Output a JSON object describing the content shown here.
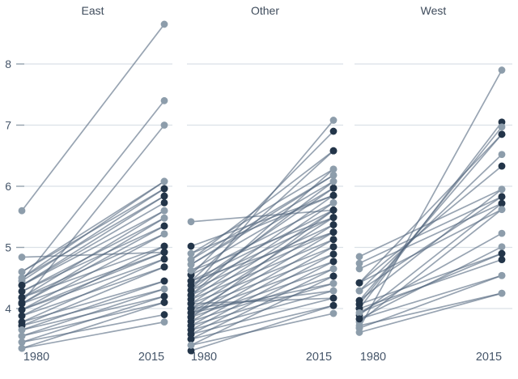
{
  "chart_data": {
    "type": "slope",
    "title": "",
    "x_categories": [
      "1980",
      "2015"
    ],
    "y_ticks": [
      4,
      5,
      6,
      7,
      8
    ],
    "y_range": [
      3.2,
      8.8
    ],
    "grid": true,
    "legend": "none",
    "facets": [
      "East",
      "Other",
      "West"
    ],
    "colors": {
      "dark_dot": "#233549",
      "light_dot": "#8d9dab",
      "line": "#53687e",
      "line_opacity": 0.6,
      "grid": "#dbe1e7",
      "tick": "#93a1ad",
      "axis_text": "#46566a",
      "title_text": "#3f4c5c",
      "background": "#ffffff"
    },
    "panels": [
      {
        "label": "East",
        "lines": [
          {
            "s": 5.6,
            "e": 8.65,
            "sc": "l",
            "ec": "l"
          },
          {
            "s": 4.45,
            "e": 7.4,
            "sc": "l",
            "ec": "l"
          },
          {
            "s": 4.1,
            "e": 7.0,
            "sc": "d",
            "ec": "l"
          },
          {
            "s": 4.84,
            "e": 4.92,
            "sc": "l",
            "ec": "d"
          },
          {
            "s": 4.6,
            "e": 6.08,
            "sc": "l",
            "ec": "l"
          },
          {
            "s": 4.6,
            "e": 5.96,
            "sc": "l",
            "ec": "d"
          },
          {
            "s": 4.5,
            "e": 6.08,
            "sc": "l",
            "ec": "l"
          },
          {
            "s": 4.5,
            "e": 5.84,
            "sc": "l",
            "ec": "d"
          },
          {
            "s": 4.45,
            "e": 5.96,
            "sc": "l",
            "ec": "d"
          },
          {
            "s": 4.38,
            "e": 5.84,
            "sc": "d",
            "ec": "d"
          },
          {
            "s": 4.38,
            "e": 5.73,
            "sc": "d",
            "ec": "d"
          },
          {
            "s": 4.38,
            "e": 5.6,
            "sc": "d",
            "ec": "l"
          },
          {
            "s": 4.28,
            "e": 5.48,
            "sc": "d",
            "ec": "l"
          },
          {
            "s": 4.28,
            "e": 5.35,
            "sc": "d",
            "ec": "d"
          },
          {
            "s": 4.18,
            "e": 5.22,
            "sc": "d",
            "ec": "l"
          },
          {
            "s": 4.18,
            "e": 5.02,
            "sc": "d",
            "ec": "d"
          },
          {
            "s": 4.18,
            "e": 5.6,
            "sc": "d",
            "ec": "l"
          },
          {
            "s": 4.08,
            "e": 4.92,
            "sc": "d",
            "ec": "d"
          },
          {
            "s": 4.08,
            "e": 5.35,
            "sc": "d",
            "ec": "d"
          },
          {
            "s": 4.08,
            "e": 5.48,
            "sc": "d",
            "ec": "l"
          },
          {
            "s": 3.98,
            "e": 4.81,
            "sc": "d",
            "ec": "d"
          },
          {
            "s": 3.98,
            "e": 5.22,
            "sc": "d",
            "ec": "l"
          },
          {
            "s": 3.98,
            "e": 4.92,
            "sc": "d",
            "ec": "d"
          },
          {
            "s": 3.88,
            "e": 4.68,
            "sc": "d",
            "ec": "d"
          },
          {
            "s": 3.88,
            "e": 5.02,
            "sc": "d",
            "ec": "d"
          },
          {
            "s": 3.78,
            "e": 4.45,
            "sc": "d",
            "ec": "d"
          },
          {
            "s": 3.78,
            "e": 4.81,
            "sc": "d",
            "ec": "d"
          },
          {
            "s": 3.72,
            "e": 4.32,
            "sc": "d",
            "ec": "l"
          },
          {
            "s": 3.72,
            "e": 4.68,
            "sc": "d",
            "ec": "d"
          },
          {
            "s": 3.65,
            "e": 4.2,
            "sc": "l",
            "ec": "d"
          },
          {
            "s": 3.65,
            "e": 4.45,
            "sc": "l",
            "ec": "d"
          },
          {
            "s": 3.55,
            "e": 4.1,
            "sc": "l",
            "ec": "d"
          },
          {
            "s": 3.55,
            "e": 4.32,
            "sc": "l",
            "ec": "l"
          },
          {
            "s": 3.45,
            "e": 3.9,
            "sc": "l",
            "ec": "d"
          },
          {
            "s": 3.45,
            "e": 4.2,
            "sc": "l",
            "ec": "d"
          },
          {
            "s": 3.35,
            "e": 3.78,
            "sc": "l",
            "ec": "l"
          },
          {
            "s": 3.35,
            "e": 4.1,
            "sc": "l",
            "ec": "d"
          }
        ]
      },
      {
        "label": "Other",
        "lines": [
          {
            "s": 5.42,
            "e": 5.61,
            "sc": "l",
            "ec": "d"
          },
          {
            "s": 4.3,
            "e": 7.08,
            "sc": "d",
            "ec": "l"
          },
          {
            "s": 4.55,
            "e": 6.9,
            "sc": "d",
            "ec": "d"
          },
          {
            "s": 4.45,
            "e": 6.58,
            "sc": "d",
            "ec": "d"
          },
          {
            "s": 4.9,
            "e": 6.28,
            "sc": "l",
            "ec": "l"
          },
          {
            "s": 4.8,
            "e": 6.18,
            "sc": "l",
            "ec": "l"
          },
          {
            "s": 4.72,
            "e": 6.08,
            "sc": "l",
            "ec": "l"
          },
          {
            "s": 4.62,
            "e": 5.97,
            "sc": "l",
            "ec": "d"
          },
          {
            "s": 5.02,
            "e": 5.85,
            "sc": "d",
            "ec": "d"
          },
          {
            "s": 4.55,
            "e": 5.73,
            "sc": "d",
            "ec": "l"
          },
          {
            "s": 4.45,
            "e": 5.61,
            "sc": "d",
            "ec": "d"
          },
          {
            "s": 4.38,
            "e": 5.49,
            "sc": "d",
            "ec": "d"
          },
          {
            "s": 4.3,
            "e": 5.37,
            "sc": "d",
            "ec": "d"
          },
          {
            "s": 4.22,
            "e": 5.25,
            "sc": "d",
            "ec": "d"
          },
          {
            "s": 4.15,
            "e": 5.13,
            "sc": "d",
            "ec": "d"
          },
          {
            "s": 4.08,
            "e": 5.01,
            "sc": "d",
            "ec": "d"
          },
          {
            "s": 4.0,
            "e": 4.89,
            "sc": "d",
            "ec": "d"
          },
          {
            "s": 3.93,
            "e": 4.77,
            "sc": "d",
            "ec": "d"
          },
          {
            "s": 3.86,
            "e": 4.65,
            "sc": "d",
            "ec": "l"
          },
          {
            "s": 3.79,
            "e": 4.53,
            "sc": "d",
            "ec": "d"
          },
          {
            "s": 3.72,
            "e": 4.41,
            "sc": "d",
            "ec": "l"
          },
          {
            "s": 3.65,
            "e": 4.29,
            "sc": "d",
            "ec": "l"
          },
          {
            "s": 3.58,
            "e": 4.17,
            "sc": "d",
            "ec": "d"
          },
          {
            "s": 3.5,
            "e": 4.05,
            "sc": "d",
            "ec": "d"
          },
          {
            "s": 3.4,
            "e": 3.92,
            "sc": "l",
            "ec": "l"
          },
          {
            "s": 3.31,
            "e": 4.05,
            "sc": "d",
            "ec": "d"
          },
          {
            "s": 4.62,
            "e": 5.49,
            "sc": "l",
            "ec": "d"
          },
          {
            "s": 4.38,
            "e": 5.97,
            "sc": "d",
            "ec": "d"
          },
          {
            "s": 4.22,
            "e": 5.85,
            "sc": "d",
            "ec": "d"
          },
          {
            "s": 4.15,
            "e": 5.73,
            "sc": "d",
            "ec": "l"
          },
          {
            "s": 4.08,
            "e": 5.61,
            "sc": "d",
            "ec": "d"
          },
          {
            "s": 4.0,
            "e": 5.49,
            "sc": "d",
            "ec": "d"
          },
          {
            "s": 3.93,
            "e": 5.37,
            "sc": "d",
            "ec": "d"
          },
          {
            "s": 3.86,
            "e": 5.25,
            "sc": "d",
            "ec": "d"
          },
          {
            "s": 3.79,
            "e": 5.13,
            "sc": "d",
            "ec": "d"
          },
          {
            "s": 3.72,
            "e": 5.01,
            "sc": "d",
            "ec": "d"
          },
          {
            "s": 3.65,
            "e": 4.89,
            "sc": "d",
            "ec": "d"
          },
          {
            "s": 3.58,
            "e": 4.77,
            "sc": "d",
            "ec": "d"
          },
          {
            "s": 3.5,
            "e": 4.65,
            "sc": "d",
            "ec": "l"
          },
          {
            "s": 3.4,
            "e": 4.53,
            "sc": "l",
            "ec": "d"
          },
          {
            "s": 4.9,
            "e": 5.85,
            "sc": "l",
            "ec": "d"
          },
          {
            "s": 4.8,
            "e": 6.58,
            "sc": "l",
            "ec": "d"
          },
          {
            "s": 4.72,
            "e": 6.18,
            "sc": "l",
            "ec": "l"
          },
          {
            "s": 4.3,
            "e": 6.08,
            "sc": "d",
            "ec": "l"
          },
          {
            "s": 3.93,
            "e": 4.41,
            "sc": "d",
            "ec": "l"
          },
          {
            "s": 4.0,
            "e": 4.29,
            "sc": "d",
            "ec": "l"
          },
          {
            "s": 4.08,
            "e": 4.17,
            "sc": "d",
            "ec": "d"
          },
          {
            "s": 3.86,
            "e": 5.61,
            "sc": "d",
            "ec": "d"
          },
          {
            "s": 4.22,
            "e": 6.28,
            "sc": "d",
            "ec": "l"
          },
          {
            "s": 4.45,
            "e": 5.25,
            "sc": "d",
            "ec": "d"
          }
        ]
      },
      {
        "label": "West",
        "lines": [
          {
            "s": 3.68,
            "e": 7.9,
            "sc": "l",
            "ec": "l"
          },
          {
            "s": 4.0,
            "e": 7.05,
            "sc": "d",
            "ec": "d"
          },
          {
            "s": 4.07,
            "e": 6.97,
            "sc": "d",
            "ec": "l"
          },
          {
            "s": 4.13,
            "e": 6.85,
            "sc": "d",
            "ec": "d"
          },
          {
            "s": 4.29,
            "e": 6.52,
            "sc": "l",
            "ec": "l"
          },
          {
            "s": 4.42,
            "e": 6.33,
            "sc": "d",
            "ec": "d"
          },
          {
            "s": 4.85,
            "e": 5.95,
            "sc": "l",
            "ec": "l"
          },
          {
            "s": 4.74,
            "e": 5.83,
            "sc": "l",
            "ec": "d"
          },
          {
            "s": 4.65,
            "e": 5.72,
            "sc": "l",
            "ec": "d"
          },
          {
            "s": 4.42,
            "e": 5.62,
            "sc": "d",
            "ec": "l"
          },
          {
            "s": 3.93,
            "e": 5.23,
            "sc": "l",
            "ec": "l"
          },
          {
            "s": 3.83,
            "e": 5.01,
            "sc": "d",
            "ec": "l"
          },
          {
            "s": 4.07,
            "e": 4.9,
            "sc": "d",
            "ec": "d"
          },
          {
            "s": 4.0,
            "e": 4.8,
            "sc": "d",
            "ec": "d"
          },
          {
            "s": 3.68,
            "e": 4.54,
            "sc": "l",
            "ec": "l"
          },
          {
            "s": 3.72,
            "e": 4.25,
            "sc": "l",
            "ec": "l"
          },
          {
            "s": 4.13,
            "e": 5.95,
            "sc": "d",
            "ec": "l"
          },
          {
            "s": 4.29,
            "e": 5.83,
            "sc": "l",
            "ec": "d"
          },
          {
            "s": 3.89,
            "e": 5.72,
            "sc": "d",
            "ec": "d"
          },
          {
            "s": 3.78,
            "e": 5.62,
            "sc": "l",
            "ec": "l"
          },
          {
            "s": 4.42,
            "e": 6.85,
            "sc": "d",
            "ec": "d"
          },
          {
            "s": 3.93,
            "e": 4.9,
            "sc": "l",
            "ec": "d"
          },
          {
            "s": 3.83,
            "e": 4.54,
            "sc": "d",
            "ec": "l"
          },
          {
            "s": 3.61,
            "e": 4.25,
            "sc": "l",
            "ec": "l"
          }
        ]
      }
    ]
  }
}
